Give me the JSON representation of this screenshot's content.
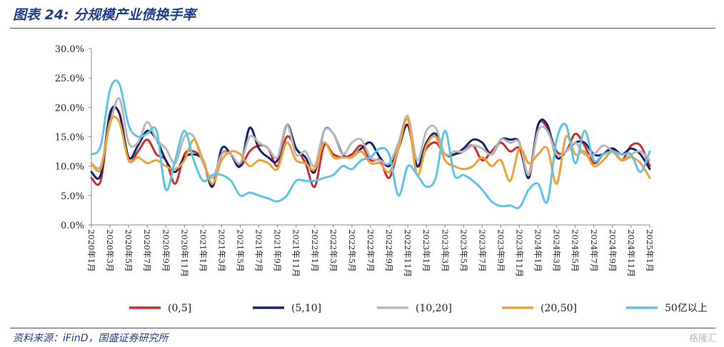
{
  "header": {
    "title": "图表 24:  分规模产业债换手率"
  },
  "footer": {
    "source": "资料来源：iFinD，国盛证券研究所",
    "watermark": "格隆汇"
  },
  "chart_data": {
    "type": "line",
    "title": "",
    "xlabel": "",
    "ylabel": "",
    "ylim": [
      0,
      30
    ],
    "yticks": [
      "0.0%",
      "5.0%",
      "10.0%",
      "15.0%",
      "20.0%",
      "25.0%",
      "30.0%"
    ],
    "grid": false,
    "legend_position": "bottom",
    "x_tick_labels": [
      "2020年1月",
      "2020年3月",
      "2020年5月",
      "2020年7月",
      "2020年9月",
      "2020年11月",
      "2021年1月",
      "2021年3月",
      "2021年5月",
      "2021年7月",
      "2021年9月",
      "2021年11月",
      "2022年1月",
      "2022年3月",
      "2022年5月",
      "2022年7月",
      "2022年9月",
      "2022年11月",
      "2023年1月",
      "2023年3月",
      "2023年5月",
      "2023年7月",
      "2023年9月",
      "2023年11月",
      "2024年1月",
      "2024年3月",
      "2024年5月",
      "2024年7月",
      "2024年9月",
      "2024年11月",
      "2025年1月"
    ],
    "x_range": [
      0,
      60
    ],
    "series": [
      {
        "name": "(0,5]",
        "color": "#cc2f2f",
        "values": [
          8,
          7.5,
          18.5,
          19,
          11,
          12.5,
          14.5,
          12,
          11,
          7,
          12,
          12.5,
          11,
          6.5,
          12,
          12,
          10,
          12.5,
          13.5,
          13,
          10,
          15,
          13,
          10.5,
          6.5,
          13.5,
          12,
          11.5,
          12,
          13.5,
          11,
          11,
          8,
          13,
          17,
          10,
          13,
          14,
          12,
          12,
          12.5,
          13.5,
          11,
          12.5,
          14,
          12.5,
          13,
          8.5,
          17,
          16.5,
          12.5,
          12.5,
          15.5,
          13.5,
          10.5,
          12,
          13,
          11,
          13.5,
          13.5,
          10
        ]
      },
      {
        "name": "(5,10]",
        "color": "#15246b",
        "values": [
          9,
          8.5,
          19,
          19,
          11.5,
          13.5,
          16,
          14.5,
          11,
          9,
          11.5,
          12,
          11,
          6.5,
          13,
          12,
          10,
          16.5,
          13,
          11.5,
          11,
          17,
          13,
          11.5,
          9,
          16,
          15.5,
          12,
          11.5,
          13,
          14,
          11.5,
          10,
          13,
          17,
          10,
          14,
          15.5,
          12,
          12,
          13,
          14.5,
          14,
          12,
          14.5,
          14.5,
          14,
          8,
          17,
          17,
          11.5,
          12.5,
          14,
          14,
          12,
          12,
          13,
          12,
          13,
          12,
          9.5
        ]
      },
      {
        "name": "(10,20]",
        "color": "#b8b8b8",
        "values": [
          10.5,
          10,
          17,
          21.5,
          14,
          14,
          17.5,
          14.5,
          13,
          10.5,
          15,
          15,
          10.5,
          8,
          12,
          12,
          10.5,
          15,
          14,
          13,
          11.5,
          17,
          12,
          12.5,
          10,
          16,
          15.5,
          12,
          14,
          14.5,
          11.5,
          11,
          10.5,
          14,
          18.5,
          11,
          16,
          16.5,
          12,
          12.5,
          12.5,
          13.5,
          13,
          12,
          14.5,
          14,
          14,
          8.5,
          16,
          16,
          12,
          12.5,
          14,
          12,
          12,
          13.5,
          12.5,
          11,
          12,
          12.5,
          11
        ]
      },
      {
        "name": "(20,50]",
        "color": "#f0a13a",
        "values": [
          10.5,
          9.5,
          17.5,
          17.5,
          11,
          11.5,
          10.5,
          11,
          10,
          9.5,
          11,
          14.5,
          11,
          7,
          11,
          12.5,
          12,
          10,
          11,
          10.5,
          9.5,
          14,
          11,
          10.5,
          9.5,
          14,
          11.5,
          11.5,
          11.5,
          12.5,
          10.5,
          10.5,
          9,
          13,
          18,
          8.5,
          13.5,
          15,
          11,
          10,
          9.5,
          10,
          11.5,
          10,
          11,
          7.5,
          13,
          10.5,
          12,
          13,
          7,
          15,
          12,
          12.5,
          10,
          11,
          12.5,
          11,
          11.5,
          10.5,
          8
        ]
      },
      {
        "name": "50亿以上",
        "color": "#5bc6e3",
        "values": [
          12,
          13.5,
          23,
          24,
          17,
          15,
          15.5,
          16,
          6,
          11,
          16,
          11,
          7.5,
          8.5,
          8.5,
          7.5,
          5,
          5.5,
          5,
          4.5,
          4,
          5,
          7.5,
          7.5,
          7.5,
          8,
          8.5,
          10,
          9.5,
          11,
          11.5,
          13,
          12,
          5,
          10,
          8.5,
          6.5,
          8,
          16,
          8.5,
          8.5,
          7.5,
          6,
          4,
          3.2,
          3.3,
          3,
          6,
          7,
          4,
          14.5,
          17,
          10.5,
          16,
          11,
          12,
          12.5,
          12,
          12,
          9,
          12.5
        ]
      }
    ]
  }
}
